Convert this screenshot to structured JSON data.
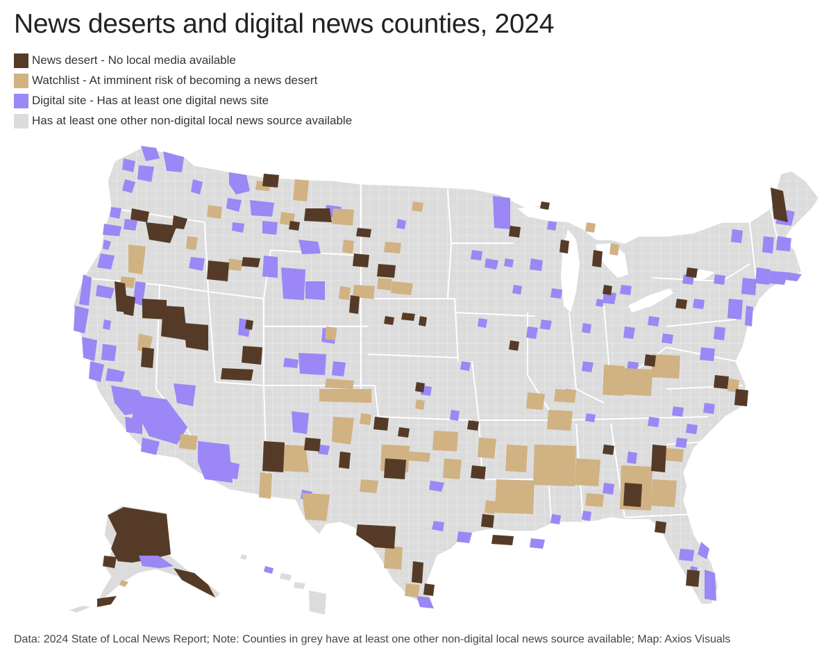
{
  "title": "News deserts and digital news counties, 2024",
  "colors": {
    "news_desert": "#553b27",
    "watchlist": "#d0b283",
    "digital": "#9b87f5",
    "other": "#dcdcdc",
    "state_border": "#ffffff",
    "county_border": "#f4f4f4"
  },
  "legend": [
    {
      "key": "news_desert",
      "label": "News desert - No local media available"
    },
    {
      "key": "watchlist",
      "label": "Watchlist - At imminent risk of becoming a news desert"
    },
    {
      "key": "digital",
      "label": "Digital site - Has at least one digital news site"
    },
    {
      "key": "other",
      "label": "Has at least one other non-digital local news source available"
    }
  ],
  "source": "Data: 2024 State of Local News Report; Note: Counties in grey have at least one other non-digital local news source available; Map: Axios Visuals"
}
